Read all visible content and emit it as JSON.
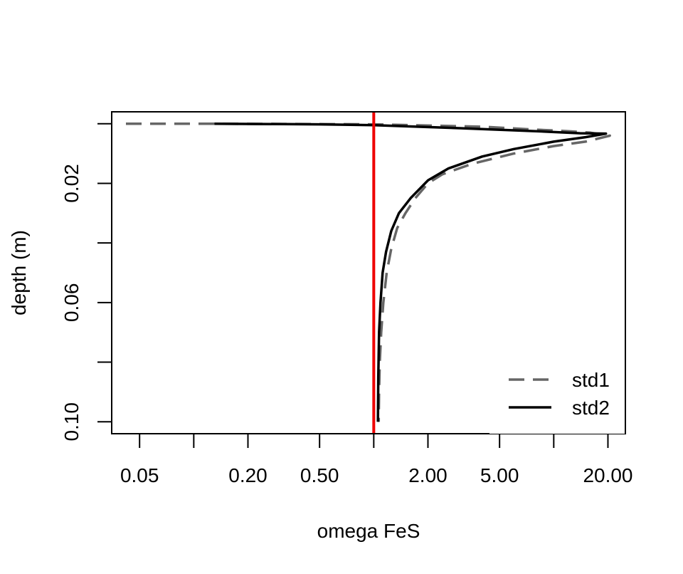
{
  "chart_data": {
    "type": "line",
    "title": "",
    "xlabel": "omega FeS",
    "ylabel": "depth (m)",
    "x_scale": "log",
    "xlim": [
      0.035,
      25
    ],
    "ylim": [
      0.104,
      -0.004
    ],
    "x_ticks": [
      0.05,
      0.1,
      0.2,
      0.5,
      1,
      2,
      5,
      10,
      20
    ],
    "x_tick_labels": [
      "0.05",
      "",
      "0.20",
      "0.50",
      "",
      "2.00",
      "5.00",
      "",
      "20.00"
    ],
    "y_ticks": [
      0.0,
      0.02,
      0.04,
      0.06,
      0.08,
      0.1
    ],
    "y_tick_labels": [
      "",
      "0.02",
      "",
      "0.06",
      "",
      "0.10"
    ],
    "grid": false,
    "reference_line": {
      "axis": "x",
      "value": 1.0,
      "color": "#ee0000"
    },
    "legend": {
      "position": "bottom-right",
      "entries": [
        "std1",
        "std2"
      ]
    },
    "series": [
      {
        "name": "std1",
        "color": "#666666",
        "dash": "dashed",
        "x": [
          0.042,
          0.13,
          1.0,
          4.0,
          8.0,
          12.0,
          16.0,
          20.5,
          15.0,
          10.0,
          6.0,
          3.5,
          2.4,
          2.0,
          1.7,
          1.5,
          1.35,
          1.25,
          1.18,
          1.13,
          1.1,
          1.08,
          1.07,
          1.065
        ],
        "y": [
          0.0,
          0.0,
          0.0002,
          0.001,
          0.002,
          0.0025,
          0.003,
          0.004,
          0.006,
          0.0075,
          0.01,
          0.0135,
          0.017,
          0.02,
          0.025,
          0.03,
          0.035,
          0.042,
          0.05,
          0.06,
          0.07,
          0.08,
          0.09,
          0.1
        ]
      },
      {
        "name": "std2",
        "color": "#000000",
        "dash": "solid",
        "x": [
          0.13,
          0.5,
          1.0,
          3.0,
          8.0,
          14.0,
          19.5,
          15.0,
          10.0,
          6.0,
          4.0,
          2.6,
          2.0,
          1.6,
          1.38,
          1.25,
          1.17,
          1.12,
          1.09,
          1.07,
          1.06,
          1.055
        ],
        "y": [
          0.0,
          0.0002,
          0.0005,
          0.0015,
          0.0025,
          0.0032,
          0.0033,
          0.0045,
          0.006,
          0.0085,
          0.011,
          0.015,
          0.019,
          0.025,
          0.03,
          0.036,
          0.043,
          0.05,
          0.06,
          0.07,
          0.085,
          0.1
        ]
      }
    ]
  }
}
